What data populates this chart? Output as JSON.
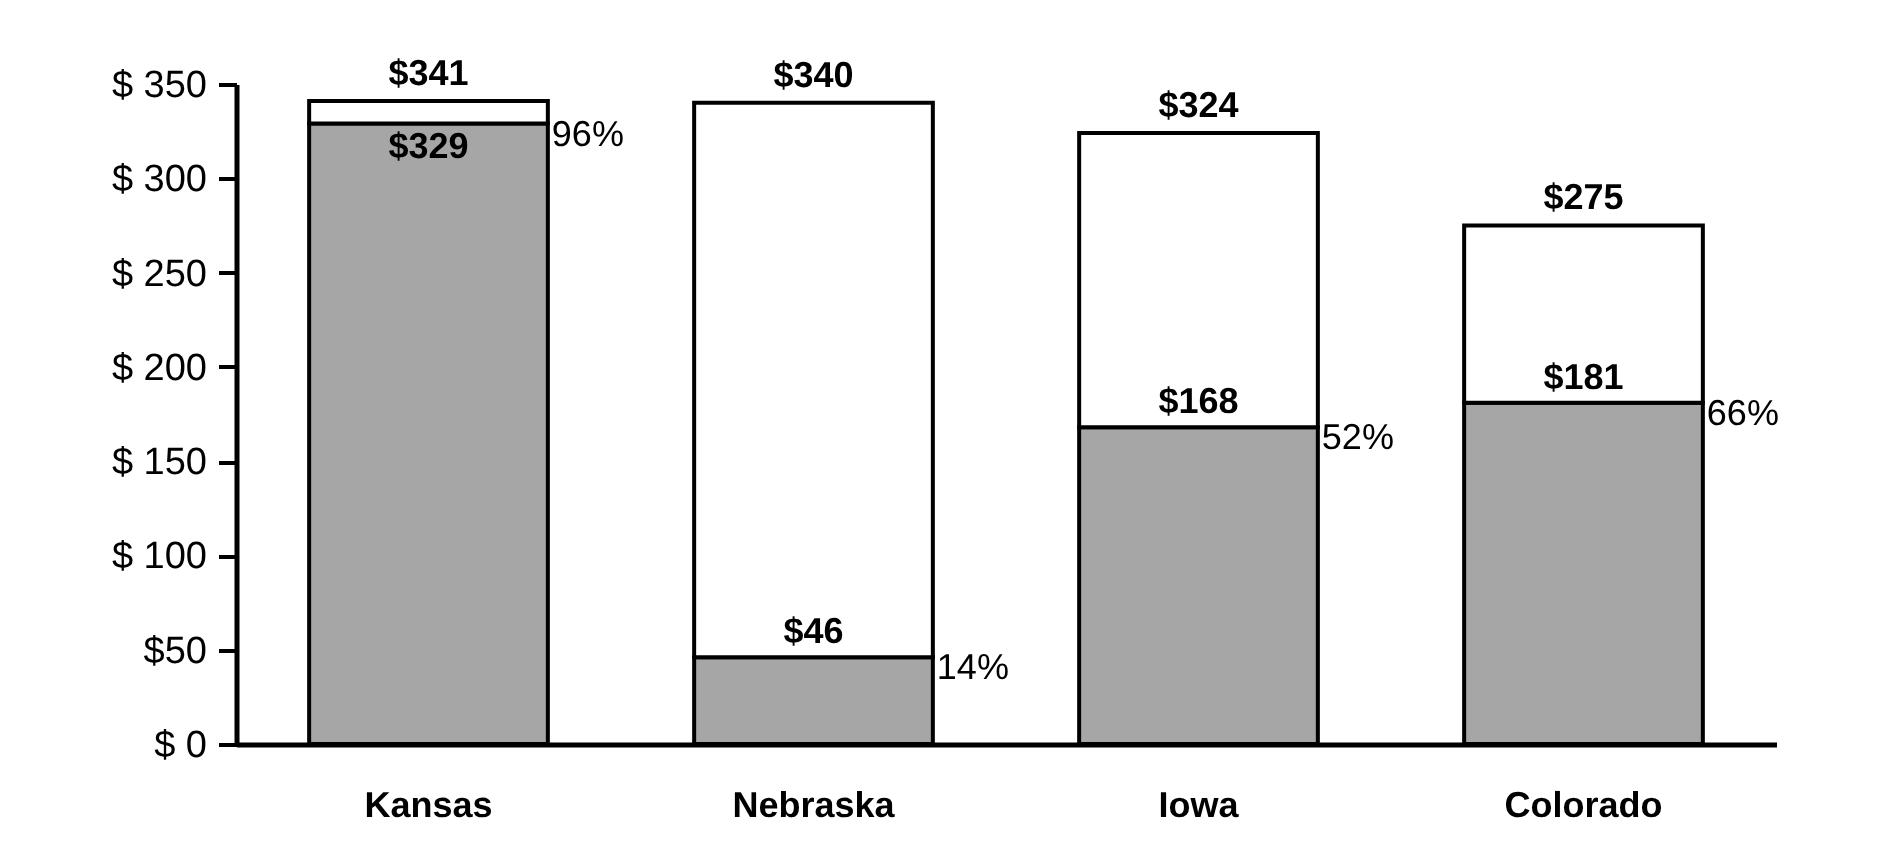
{
  "chart_data": {
    "type": "bar",
    "stacked": true,
    "categories": [
      "Kansas",
      "Nebraska",
      "Iowa",
      "Colorado"
    ],
    "series": [
      {
        "color": "#a6a6a6",
        "values": [
          329,
          46,
          168,
          181
        ],
        "value_labels": [
          "$329",
          "$46",
          "$168",
          "$181"
        ]
      },
      {
        "color": "#ffffff",
        "values": [
          12,
          294,
          156,
          94
        ]
      }
    ],
    "totals": [
      "$341",
      "$340",
      "$324",
      "$275"
    ],
    "ylim": [
      0,
      350
    ],
    "yticks": [
      {
        "value": 0,
        "label": "$ 0"
      },
      {
        "value": 50,
        "label": "$50"
      },
      {
        "value": 100,
        "label": "$ 100"
      },
      {
        "value": 150,
        "label": "$ 150"
      },
      {
        "value": 200,
        "label": "$ 200"
      },
      {
        "value": 250,
        "label": "$ 250"
      },
      {
        "value": 300,
        "label": "$ 300"
      },
      {
        "value": 350,
        "label": "$ 350"
      }
    ],
    "annotations": [
      "96%",
      "14%",
      "52%",
      "66%"
    ],
    "grid": false,
    "legend": false
  }
}
